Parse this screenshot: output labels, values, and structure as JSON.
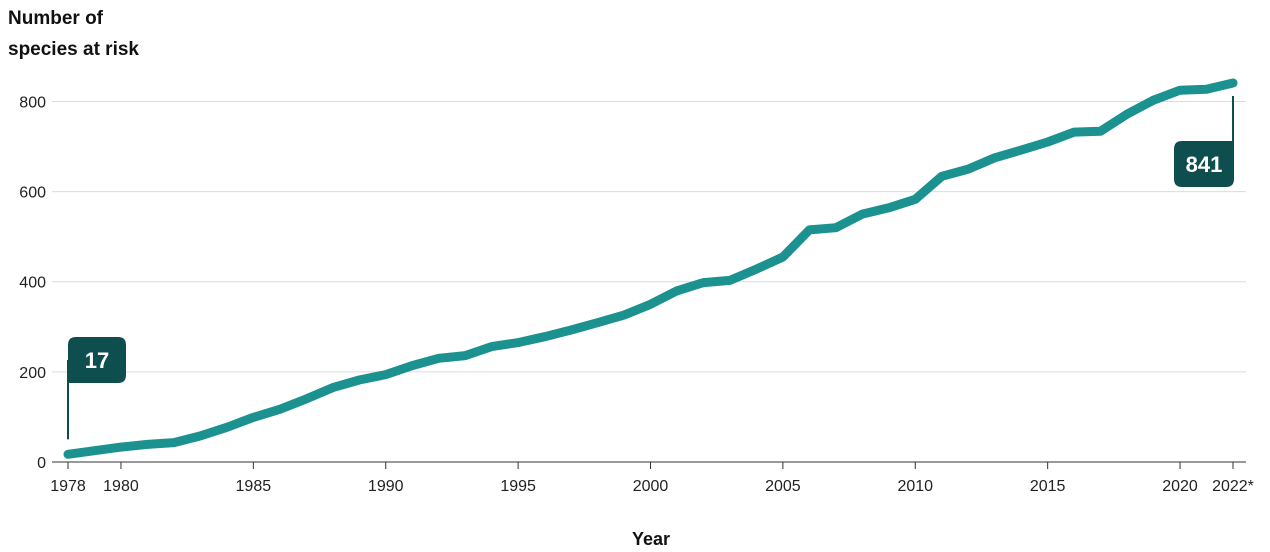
{
  "chart_data": {
    "type": "line",
    "ylabel_lines": [
      "Number of",
      "species at risk"
    ],
    "xlabel": "Year",
    "ylim": [
      0,
      841
    ],
    "yticks": [
      0,
      200,
      400,
      600,
      800
    ],
    "xlim": [
      1978,
      2022
    ],
    "xticks": [
      {
        "value": 1978,
        "label": "1978"
      },
      {
        "value": 1980,
        "label": "1980"
      },
      {
        "value": 1985,
        "label": "1985"
      },
      {
        "value": 1990,
        "label": "1990"
      },
      {
        "value": 1995,
        "label": "1995"
      },
      {
        "value": 2000,
        "label": "2000"
      },
      {
        "value": 2005,
        "label": "2005"
      },
      {
        "value": 2010,
        "label": "2010"
      },
      {
        "value": 2015,
        "label": "2015"
      },
      {
        "value": 2020,
        "label": "2020"
      },
      {
        "value": 2022,
        "label": "2022*"
      }
    ],
    "grid": true,
    "x": [
      1978,
      1979,
      1980,
      1981,
      1982,
      1983,
      1984,
      1985,
      1986,
      1987,
      1988,
      1989,
      1990,
      1991,
      1992,
      1993,
      1994,
      1995,
      1996,
      1997,
      1998,
      1999,
      2000,
      2001,
      2002,
      2003,
      2004,
      2005,
      2006,
      2007,
      2008,
      2009,
      2010,
      2011,
      2012,
      2013,
      2014,
      2015,
      2016,
      2017,
      2018,
      2019,
      2020,
      2021,
      2022
    ],
    "series": [
      {
        "values": [
          17,
          25,
          33,
          39,
          43,
          58,
          77,
          99,
          117,
          140,
          165,
          182,
          194,
          214,
          230,
          236,
          256,
          265,
          278,
          293,
          309,
          326,
          350,
          380,
          398,
          403,
          428,
          455,
          515,
          520,
          550,
          564,
          583,
          634,
          650,
          675,
          692,
          710,
          732,
          734,
          772,
          803,
          825,
          827,
          841
        ]
      }
    ],
    "callouts": [
      {
        "x": 1978,
        "value": 17,
        "label": "17"
      },
      {
        "x": 2022,
        "value": 841,
        "label": "841"
      }
    ],
    "colors": {
      "line": "#1b9190",
      "callout_bg": "#0f4e4e",
      "grid": "#dcdcdc",
      "axis": "#333333"
    }
  }
}
